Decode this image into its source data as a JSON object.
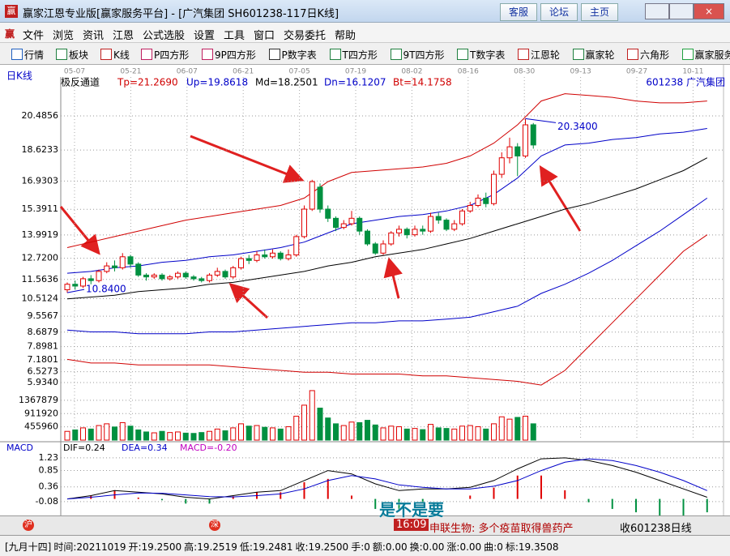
{
  "window": {
    "title": "赢家江恩专业版[赢家服务平台] - [广汽集团  SH601238-117日K线]",
    "links": [
      "客服",
      "论坛",
      "主页"
    ],
    "menu": [
      "文件",
      "浏览",
      "资讯",
      "江恩",
      "公式选股",
      "设置",
      "工具",
      "窗口",
      "交易委托",
      "帮助"
    ],
    "toolbar": [
      "行情",
      "板块",
      "K线",
      "P四方形",
      "9P四方形",
      "P数字表",
      "T四方形",
      "9T四方形",
      "T数字表",
      "江恩轮",
      "赢家轮",
      "六角形",
      "赢家服务"
    ]
  },
  "chart_data": {
    "type": "candlestick",
    "period": "日K线",
    "indicator": "极反通道",
    "indicator_values": [
      "Tp=21.2690",
      "Up=19.8618",
      "Md=18.2501",
      "Dn=16.1207",
      "Bt=14.1758"
    ],
    "stock": "601238 广汽集团",
    "dates": [
      "05-07",
      "05-21",
      "06-07",
      "06-21",
      "07-05",
      "07-19",
      "08-02",
      "08-16",
      "08-30",
      "09-13",
      "09-27",
      "10-11"
    ],
    "open": [
      11.0,
      11.3,
      11.2,
      11.6,
      11.5,
      12.0,
      12.3,
      12.2,
      12.8,
      12.4,
      11.8,
      11.7,
      11.8,
      11.6,
      11.7,
      11.9,
      11.7,
      11.6,
      11.5,
      11.8,
      12.0,
      11.7,
      12.2,
      12.7,
      12.6,
      12.9,
      12.8,
      13.0,
      12.7,
      12.9,
      13.9,
      15.4,
      16.6,
      15.4,
      14.9,
      14.4,
      14.6,
      14.9,
      14.2,
      13.5,
      13.0,
      13.5,
      14.1,
      14.3,
      14.0,
      14.3,
      14.2,
      15.0,
      14.8,
      14.3,
      14.6,
      15.3,
      15.6,
      16.0,
      15.7,
      17.3,
      18.2,
      18.8,
      18.3,
      20.0
    ],
    "close": [
      11.3,
      11.2,
      11.6,
      11.5,
      12.0,
      12.3,
      12.2,
      12.8,
      12.4,
      11.8,
      11.7,
      11.8,
      11.6,
      11.7,
      11.9,
      11.7,
      11.6,
      11.5,
      11.8,
      12.0,
      11.7,
      12.2,
      12.7,
      12.6,
      12.9,
      12.8,
      13.0,
      12.7,
      12.9,
      13.9,
      15.4,
      16.9,
      15.4,
      14.9,
      14.4,
      14.6,
      14.9,
      14.2,
      13.5,
      13.0,
      13.5,
      14.1,
      14.3,
      14.0,
      14.3,
      14.2,
      15.0,
      14.8,
      14.3,
      14.6,
      15.3,
      15.6,
      16.0,
      15.7,
      17.3,
      18.2,
      18.8,
      18.3,
      20.0,
      18.9
    ],
    "high": [
      11.4,
      11.5,
      11.7,
      11.8,
      12.1,
      12.5,
      12.6,
      13.0,
      12.9,
      12.5,
      11.9,
      11.9,
      11.9,
      11.8,
      12.0,
      12.0,
      11.8,
      11.7,
      11.9,
      12.2,
      12.1,
      12.3,
      12.8,
      12.9,
      13.1,
      13.2,
      13.2,
      13.1,
      13.2,
      14.0,
      15.6,
      17.0,
      16.8,
      15.6,
      15.0,
      14.8,
      15.3,
      15.0,
      14.3,
      13.6,
      13.7,
      14.2,
      14.5,
      14.4,
      14.5,
      14.5,
      15.2,
      15.2,
      14.9,
      14.8,
      15.4,
      15.8,
      16.2,
      16.3,
      17.5,
      18.5,
      19.3,
      19.0,
      20.34,
      20.1
    ],
    "low": [
      10.84,
      11.0,
      11.1,
      11.3,
      11.4,
      11.9,
      12.0,
      12.1,
      12.2,
      11.7,
      11.5,
      11.6,
      11.5,
      11.5,
      11.6,
      11.6,
      11.5,
      11.4,
      11.4,
      11.7,
      11.6,
      11.6,
      12.1,
      12.4,
      12.5,
      12.7,
      12.7,
      12.6,
      12.6,
      12.8,
      13.8,
      15.3,
      15.2,
      14.7,
      14.2,
      14.3,
      14.5,
      14.0,
      13.4,
      12.9,
      12.9,
      13.4,
      13.9,
      13.8,
      13.9,
      14.0,
      14.1,
      14.6,
      14.2,
      14.2,
      14.5,
      15.2,
      15.5,
      15.5,
      15.6,
      17.1,
      17.9,
      17.2,
      18.2,
      18.7
    ],
    "ylim": [
      5.67,
      22.61
    ],
    "yticks": [
      20.4856,
      18.6233,
      16.9303,
      15.3911,
      13.9919,
      {
        "value": 12.72,
        "label": "12.7200"
      },
      11.5636,
      10.5124,
      9.5567,
      8.6879,
      7.8981,
      7.1801,
      6.5273,
      {
        "value": 5.934,
        "label": "5.9340"
      }
    ],
    "max_label": "20.3400",
    "min_label": "10.8400",
    "line_x": [
      0,
      3,
      6,
      9,
      12,
      15,
      18,
      21,
      24,
      27,
      30,
      33,
      36,
      39,
      42,
      45,
      48,
      51,
      54,
      57,
      60,
      63,
      66,
      69,
      72,
      75,
      78,
      81
    ],
    "bands": [
      {
        "color": "#d00000",
        "values": [
          13.3,
          13.6,
          13.9,
          14.2,
          14.5,
          14.8,
          15.0,
          15.2,
          15.4,
          15.6,
          16.0,
          16.9,
          17.4,
          17.5,
          17.6,
          17.7,
          17.9,
          18.3,
          19.0,
          20.0,
          21.3,
          21.7,
          21.6,
          21.5,
          21.3,
          21.2,
          21.2,
          21.3
        ]
      },
      {
        "color": "#0000c8",
        "values": [
          11.9,
          12.0,
          12.2,
          12.3,
          12.5,
          12.6,
          12.8,
          12.9,
          13.1,
          13.3,
          13.6,
          14.1,
          14.6,
          14.8,
          15.0,
          15.1,
          15.3,
          15.6,
          16.2,
          17.1,
          18.3,
          18.9,
          19.0,
          19.2,
          19.3,
          19.5,
          19.6,
          19.8
        ]
      },
      {
        "color": "#000000",
        "values": [
          10.5,
          10.6,
          10.7,
          10.9,
          11.0,
          11.1,
          11.3,
          11.4,
          11.6,
          11.8,
          12.0,
          12.3,
          12.5,
          12.8,
          13.0,
          13.2,
          13.5,
          13.8,
          14.2,
          14.6,
          15.0,
          15.4,
          15.7,
          16.1,
          16.5,
          17.0,
          17.5,
          18.2
        ]
      },
      {
        "color": "#0000c8",
        "values": [
          8.8,
          8.7,
          8.7,
          8.6,
          8.6,
          8.6,
          8.7,
          8.7,
          8.8,
          8.9,
          9.0,
          9.1,
          9.2,
          9.2,
          9.3,
          9.3,
          9.4,
          9.5,
          9.8,
          10.1,
          10.8,
          11.3,
          11.9,
          12.6,
          13.4,
          14.2,
          15.1,
          16.0
        ]
      },
      {
        "color": "#d00000",
        "values": [
          7.2,
          7.0,
          7.0,
          6.9,
          6.9,
          6.9,
          6.9,
          6.8,
          6.7,
          6.6,
          6.5,
          6.5,
          6.4,
          6.4,
          6.4,
          6.3,
          6.3,
          6.2,
          6.1,
          6.0,
          5.8,
          6.6,
          7.9,
          9.2,
          10.5,
          11.8,
          13.1,
          14.0
        ]
      }
    ],
    "volume": {
      "values": [
        300000,
        350000,
        420000,
        380000,
        500000,
        560000,
        450000,
        600000,
        480000,
        350000,
        280000,
        250000,
        300000,
        260000,
        280000,
        240000,
        230000,
        260000,
        300000,
        380000,
        320000,
        420000,
        560000,
        480000,
        500000,
        440000,
        420000,
        380000,
        460000,
        820000,
        1200000,
        1700000,
        1100000,
        760000,
        560000,
        500000,
        620000,
        600000,
        680000,
        520000,
        420000,
        480000,
        460000,
        380000,
        400000,
        360000,
        540000,
        420000,
        400000,
        380000,
        480000,
        500000,
        460000,
        380000,
        560000,
        800000,
        720000,
        780000,
        820000,
        560000
      ],
      "ylim": [
        0,
        1810000
      ],
      "yticks": [
        1367879,
        911920,
        455960
      ]
    },
    "macd": {
      "title": "MACD",
      "labels": [
        "DIF=0.24",
        "DEA=0.34",
        "MACD=-0.20"
      ],
      "dif": [
        0.0,
        0.1,
        0.25,
        0.2,
        0.15,
        0.05,
        0.0,
        0.1,
        0.2,
        0.25,
        0.55,
        0.85,
        0.75,
        0.45,
        0.25,
        0.3,
        0.3,
        0.35,
        0.55,
        0.9,
        1.2,
        1.23,
        1.15,
        1.0,
        0.8,
        0.55,
        0.3,
        0.05
      ],
      "dea": [
        0.0,
        0.05,
        0.12,
        0.18,
        0.17,
        0.12,
        0.07,
        0.06,
        0.1,
        0.15,
        0.3,
        0.55,
        0.7,
        0.6,
        0.42,
        0.35,
        0.3,
        0.3,
        0.38,
        0.55,
        0.85,
        1.1,
        1.2,
        1.15,
        1.0,
        0.8,
        0.55,
        0.25
      ],
      "hist": [
        0,
        0.1,
        0.26,
        0.04,
        -0.04,
        -0.14,
        -0.14,
        0.08,
        0.2,
        0.2,
        0.5,
        0.6,
        0.1,
        -0.3,
        -0.34,
        -0.1,
        0,
        0.1,
        0.34,
        0.7,
        0.7,
        0.26,
        -0.1,
        -0.3,
        -0.4,
        -0.5,
        -0.5,
        -0.4
      ],
      "ylim": [
        -0.35,
        1.64
      ],
      "yticks": [
        1.23,
        0.85,
        0.36,
        -0.08
      ]
    }
  },
  "ticker": {
    "time": "16:09",
    "news": "申联生物:  多个疫苗取得兽药产",
    "right": "收601238日线",
    "overlay": "是不是要"
  },
  "status": [
    "[九月十四]",
    "时间:20211019",
    "开:19.2500",
    "高:19.2519",
    "低:19.2481",
    "收:19.2500",
    "手:0",
    "额:0.00",
    "换:0.00",
    "涨:0.00",
    "曲:0",
    "标:19.3508"
  ]
}
